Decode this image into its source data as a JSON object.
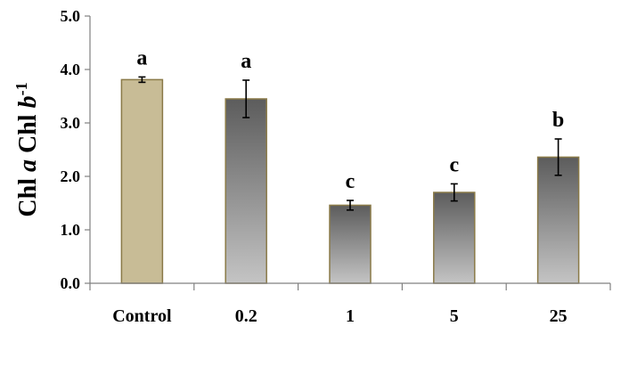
{
  "chart_data": {
    "type": "bar",
    "categories": [
      "Control",
      "0.2",
      "1",
      "5",
      "25"
    ],
    "values": [
      3.81,
      3.45,
      1.46,
      1.7,
      2.36
    ],
    "errors": [
      0.05,
      0.35,
      0.09,
      0.16,
      0.34
    ],
    "significance_letters": [
      "a",
      "a",
      "c",
      "c",
      "b"
    ],
    "ylabel": {
      "parts": [
        {
          "text": "Chl ",
          "style": "normal"
        },
        {
          "text": "a",
          "style": "italic"
        },
        {
          "text": " Chl ",
          "style": "normal"
        },
        {
          "text": "b",
          "style": "italic"
        },
        {
          "text": "-1",
          "style": "superscript"
        }
      ]
    },
    "xlabel": "",
    "ylim": [
      0,
      5
    ],
    "yticks": [
      "0.0",
      "1.0",
      "2.0",
      "3.0",
      "4.0",
      "5.0"
    ],
    "grid": false,
    "legend": "none",
    "colors": {
      "control_fill": "#c8bc96",
      "treatment_gradient_top": "#5c5c5c",
      "treatment_gradient_bottom": "#c4c4c4",
      "bar_outline": "#8a7a48",
      "axis": "#808080"
    }
  }
}
